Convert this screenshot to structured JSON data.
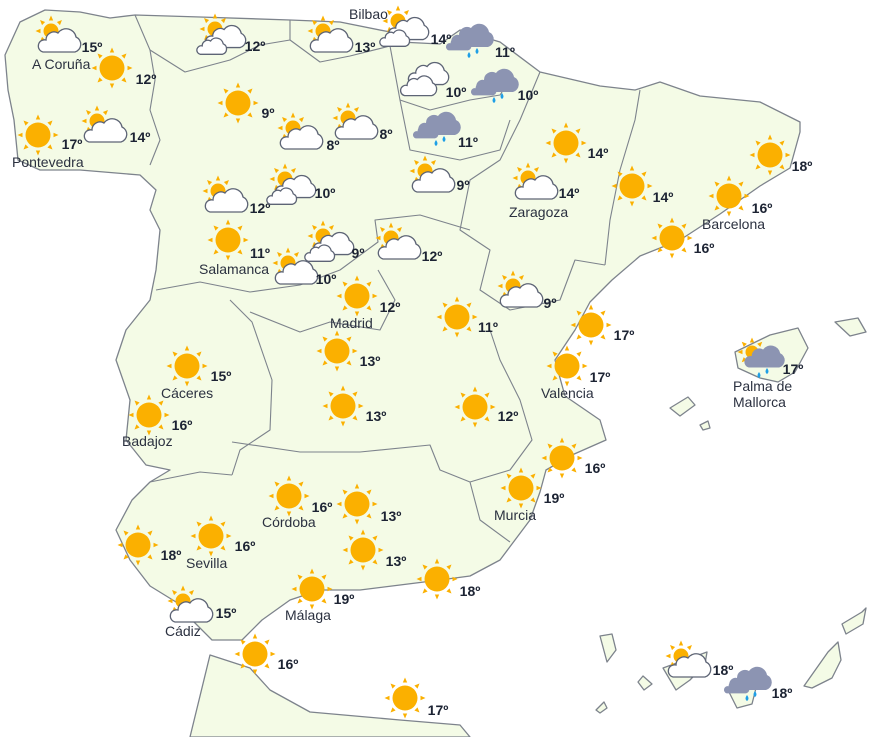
{
  "colors": {
    "land": "#f4fbe6",
    "border": "#7d838c",
    "sun": "#fbb000",
    "rain_cloud": "#8c94b2",
    "drop": "#1e9fe6",
    "temp_text": "#1c2333"
  },
  "cities": {
    "bilbao": "Bilbao",
    "a_coruna": "A Coruña",
    "pontevedra": "Pontevedra",
    "zaragoza": "Zaragoza",
    "barcelona": "Barcelona",
    "salamanca": "Salamanca",
    "madrid": "Madrid",
    "caceres": "Cáceres",
    "valencia": "Valencia",
    "palma": [
      "Palma de",
      "Mallorca"
    ],
    "badajoz": "Badajoz",
    "cordoba": "Córdoba",
    "murcia": "Murcia",
    "sevilla": "Sevilla",
    "malaga": "Málaga",
    "cadiz": "Cádiz"
  },
  "forecasts": [
    {
      "icon": "sun-cloud",
      "temp": "15º"
    },
    {
      "icon": "sun",
      "temp": "12º"
    },
    {
      "icon": "sun",
      "temp": "17º"
    },
    {
      "icon": "sun-cloud",
      "temp": "14º"
    },
    {
      "icon": "sun-clouds",
      "temp": "12º"
    },
    {
      "icon": "sun-cloud",
      "temp": "13º"
    },
    {
      "icon": "sun-clouds",
      "temp": "14º"
    },
    {
      "icon": "rain",
      "temp": "11º"
    },
    {
      "icon": "clouds",
      "temp": "10º"
    },
    {
      "icon": "rain",
      "temp": "10º"
    },
    {
      "icon": "sun",
      "temp": "9º"
    },
    {
      "icon": "sun-cloud",
      "temp": "8º"
    },
    {
      "icon": "sun-cloud",
      "temp": "8º"
    },
    {
      "icon": "rain",
      "temp": "11º"
    },
    {
      "icon": "sun-cloud",
      "temp": "9º"
    },
    {
      "icon": "sun",
      "temp": "14º"
    },
    {
      "icon": "sun",
      "temp": "18º"
    },
    {
      "icon": "sun-cloud",
      "temp": "12º"
    },
    {
      "icon": "sun-clouds",
      "temp": "10º"
    },
    {
      "icon": "sun-cloud",
      "temp": "14º"
    },
    {
      "icon": "sun",
      "temp": "14º"
    },
    {
      "icon": "sun",
      "temp": "16º"
    },
    {
      "icon": "sun",
      "temp": "11º"
    },
    {
      "icon": "sun-clouds",
      "temp": "9º"
    },
    {
      "icon": "sun-cloud",
      "temp": "12º"
    },
    {
      "icon": "sun-cloud",
      "temp": "10º"
    },
    {
      "icon": "sun",
      "temp": "16º"
    },
    {
      "icon": "sun",
      "temp": "12º"
    },
    {
      "icon": "sun",
      "temp": "11º"
    },
    {
      "icon": "sun-cloud",
      "temp": "9º"
    },
    {
      "icon": "sun",
      "temp": "17º"
    },
    {
      "icon": "sun-rain",
      "temp": "17º"
    },
    {
      "icon": "sun",
      "temp": "15º"
    },
    {
      "icon": "sun",
      "temp": "13º"
    },
    {
      "icon": "sun",
      "temp": "17º"
    },
    {
      "icon": "sun",
      "temp": "16º"
    },
    {
      "icon": "sun",
      "temp": "13º"
    },
    {
      "icon": "sun",
      "temp": "12º"
    },
    {
      "icon": "sun",
      "temp": "16º"
    },
    {
      "icon": "sun",
      "temp": "16º"
    },
    {
      "icon": "sun",
      "temp": "13º"
    },
    {
      "icon": "sun",
      "temp": "19º"
    },
    {
      "icon": "sun",
      "temp": "18º"
    },
    {
      "icon": "sun",
      "temp": "16º"
    },
    {
      "icon": "sun",
      "temp": "13º"
    },
    {
      "icon": "sun",
      "temp": "18º"
    },
    {
      "icon": "sun",
      "temp": "19º"
    },
    {
      "icon": "sun-cloud",
      "temp": "15º"
    },
    {
      "icon": "sun",
      "temp": "16º"
    },
    {
      "icon": "sun",
      "temp": "17º"
    },
    {
      "icon": "sun-cloud",
      "temp": "18º"
    },
    {
      "icon": "rain",
      "temp": "18º"
    }
  ]
}
